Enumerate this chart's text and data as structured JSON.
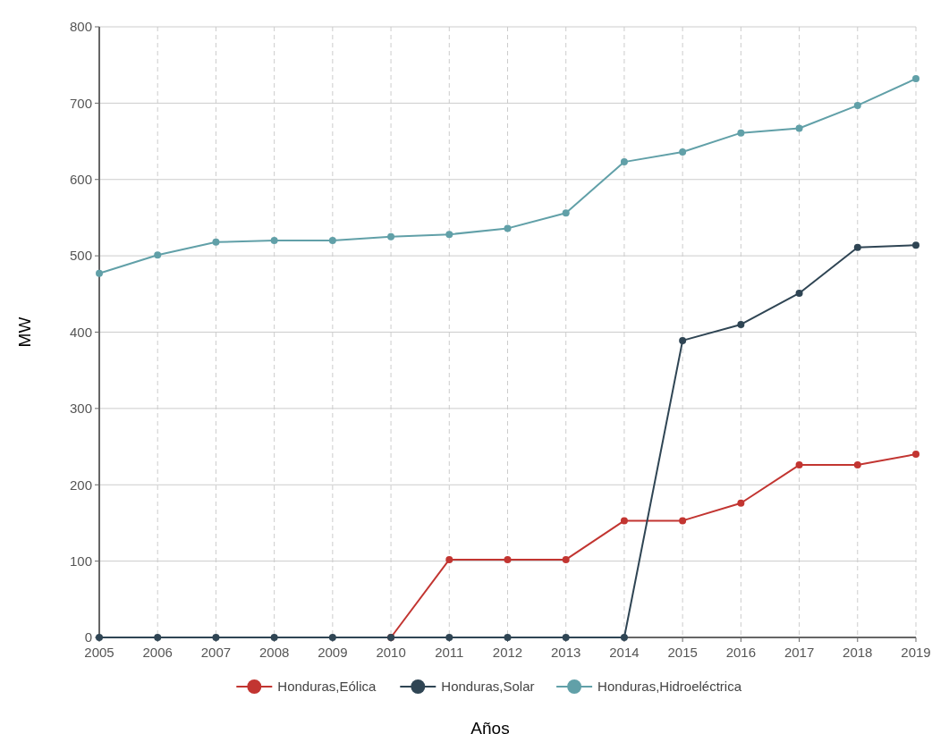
{
  "chart_data": {
    "type": "line",
    "xlabel": "Años",
    "ylabel": "MW",
    "categories": [
      "2005",
      "2006",
      "2007",
      "2008",
      "2009",
      "2010",
      "2011",
      "2012",
      "2013",
      "2014",
      "2015",
      "2016",
      "2017",
      "2018",
      "2019"
    ],
    "series": [
      {
        "name": "Honduras,Eólica",
        "color": "#c23531",
        "values": [
          null,
          null,
          null,
          null,
          null,
          0,
          102,
          102,
          102,
          153,
          153,
          176,
          226,
          226,
          240
        ]
      },
      {
        "name": "Honduras,Solar",
        "color": "#2f4554",
        "values": [
          0,
          0,
          0,
          0,
          0,
          0,
          0,
          0,
          0,
          0,
          389,
          410,
          451,
          511,
          514
        ]
      },
      {
        "name": "Honduras,Hidroeléctrica",
        "color": "#61a0a8",
        "values": [
          477,
          501,
          518,
          520,
          520,
          525,
          528,
          536,
          556,
          623,
          636,
          661,
          667,
          697,
          732
        ]
      }
    ],
    "ylim": [
      0,
      800
    ],
    "yticks": [
      0,
      100,
      200,
      300,
      400,
      500,
      600,
      700,
      800
    ],
    "grid": true,
    "legend": "bottom",
    "marker": "circle",
    "line_style": "solid"
  }
}
